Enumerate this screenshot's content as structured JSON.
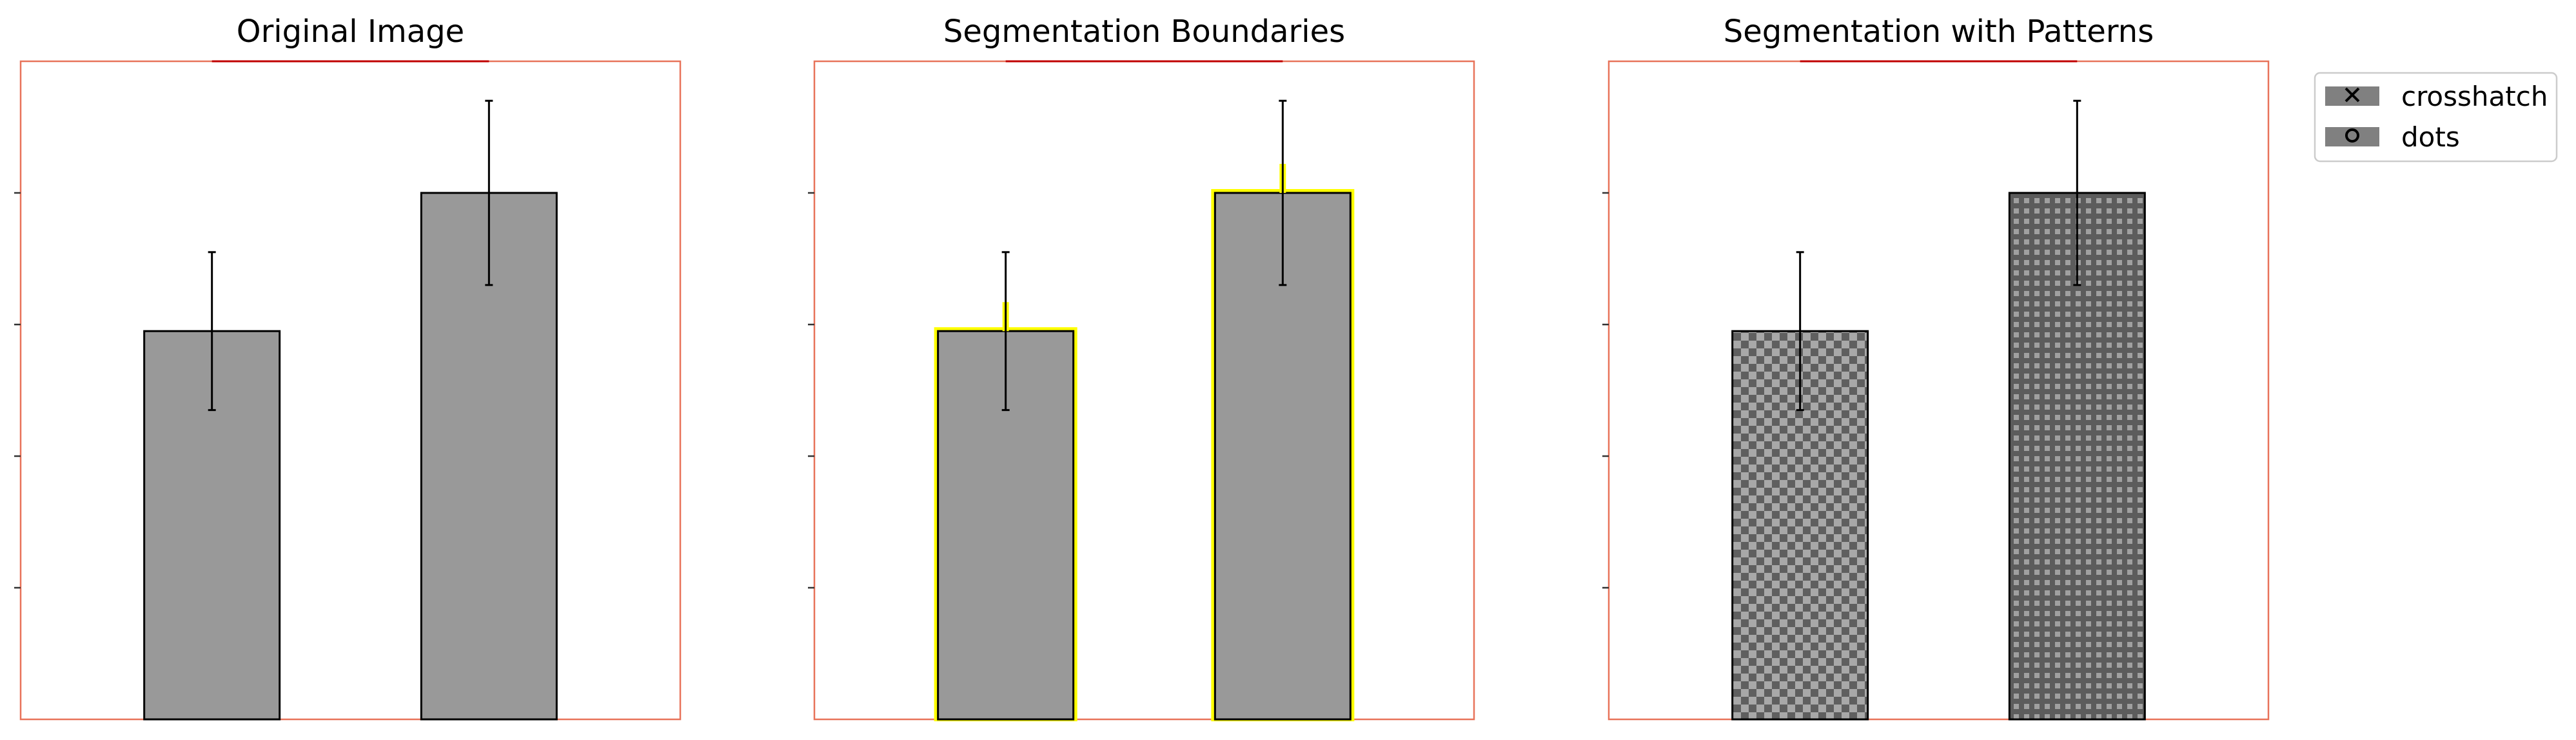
{
  "chart_data": {
    "type": "bar",
    "categories": [
      "",
      ""
    ],
    "ylim": [
      0,
      5
    ],
    "yticks": [
      1,
      2,
      3,
      4
    ],
    "xlabel": "",
    "ylabel": "",
    "grid": false,
    "legend_placement": "outside-top-right",
    "panels": [
      {
        "title": "Original Image",
        "style": "plain",
        "values": [
          2.95,
          4.0
        ],
        "errors": [
          0.6,
          0.7
        ]
      },
      {
        "title": "Segmentation Boundaries",
        "style": "boundary",
        "values": [
          2.95,
          4.0
        ],
        "errors": [
          0.6,
          0.7
        ]
      },
      {
        "title": "Segmentation with Patterns",
        "style": "patterned",
        "values": [
          2.95,
          4.0
        ],
        "errors": [
          0.6,
          0.7
        ],
        "patterns": [
          "crosshatch",
          "dots"
        ]
      }
    ],
    "legend": [
      {
        "label": "crosshatch",
        "marker": "x"
      },
      {
        "label": "dots",
        "marker": "o"
      }
    ]
  },
  "colors": {
    "bar_fill": "#999999",
    "pattern_base": "#808080",
    "bar_edge": "#000000",
    "axes_frame": "#e8735a",
    "top_accent": "#c00000",
    "boundary": "#ffff00",
    "pattern_light": "#a6a6a6",
    "pattern_dark": "#595959"
  }
}
